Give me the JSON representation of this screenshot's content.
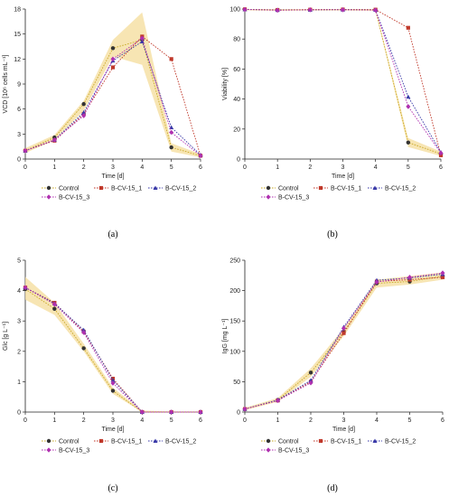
{
  "figure": {
    "panel_labels": [
      "(a)",
      "(b)",
      "(c)",
      "(d)"
    ],
    "legend_labels": [
      "Control",
      "B-CV-15_1",
      "B-CV-15_2",
      "B-CV-15_3"
    ]
  },
  "chart_data": [
    {
      "type": "line",
      "panel": "(a)",
      "xlabel": "Time [d]",
      "ylabel": "VCD [10⁶ cells mL⁻¹]",
      "xlim": [
        0,
        6
      ],
      "ylim": [
        0,
        18
      ],
      "xticks": [
        0,
        1,
        2,
        3,
        4,
        5,
        6
      ],
      "yticks": [
        0,
        3,
        6,
        9,
        12,
        15,
        18
      ],
      "x": [
        0,
        1,
        2,
        3,
        4,
        5,
        6
      ],
      "control_band": {
        "lower": [
          0.7,
          2.3,
          5.8,
          12.3,
          11.3,
          0.9,
          0.2
        ],
        "upper": [
          1.3,
          2.9,
          7.0,
          14.3,
          17.6,
          1.9,
          0.6
        ]
      },
      "series": [
        {
          "name": "Control",
          "color": "#333333",
          "marker": "circle",
          "values": [
            1.0,
            2.6,
            6.6,
            13.3,
            14.3,
            1.4,
            0.4
          ]
        },
        {
          "name": "B-CV-15_1",
          "color": "#c0392b",
          "marker": "square",
          "values": [
            1.0,
            2.2,
            5.4,
            11.0,
            14.7,
            12.0,
            0.4
          ]
        },
        {
          "name": "B-CV-15_2",
          "color": "#3a3aa8",
          "marker": "triangle",
          "values": [
            1.0,
            2.3,
            5.6,
            11.8,
            14.1,
            3.8,
            0.5
          ]
        },
        {
          "name": "B-CV-15_3",
          "color": "#b030b0",
          "marker": "diamond",
          "values": [
            1.0,
            2.3,
            5.2,
            12.0,
            14.5,
            3.2,
            0.4
          ]
        }
      ]
    },
    {
      "type": "line",
      "panel": "(b)",
      "xlabel": "Time [d]",
      "ylabel": "Viability [%]",
      "xlim": [
        0,
        6
      ],
      "ylim": [
        0,
        100
      ],
      "xticks": [
        0,
        1,
        2,
        3,
        4,
        5,
        6
      ],
      "yticks": [
        0,
        20,
        40,
        60,
        80,
        100
      ],
      "x": [
        0,
        1,
        2,
        3,
        4,
        5,
        6
      ],
      "control_band": {
        "lower": [
          99.2,
          98.8,
          99.0,
          99.0,
          98.8,
          8.0,
          2.0
        ],
        "upper": [
          100,
          100,
          100,
          100,
          100,
          14.0,
          5.0
        ]
      },
      "series": [
        {
          "name": "Control",
          "color": "#333333",
          "marker": "circle",
          "values": [
            99.7,
            99.3,
            99.5,
            99.6,
            99.4,
            11.0,
            3.5
          ]
        },
        {
          "name": "B-CV-15_1",
          "color": "#c0392b",
          "marker": "square",
          "values": [
            99.8,
            99.4,
            99.6,
            99.7,
            99.6,
            87.5,
            2.5
          ]
        },
        {
          "name": "B-CV-15_2",
          "color": "#3a3aa8",
          "marker": "triangle",
          "values": [
            99.8,
            99.3,
            99.5,
            99.6,
            99.4,
            41.5,
            4.5
          ]
        },
        {
          "name": "B-CV-15_3",
          "color": "#b030b0",
          "marker": "diamond",
          "values": [
            99.7,
            99.2,
            99.5,
            99.5,
            99.3,
            35.0,
            4.0
          ]
        }
      ]
    },
    {
      "type": "line",
      "panel": "(c)",
      "xlabel": "Time [d]",
      "ylabel": "Glc [g L⁻¹]",
      "xlim": [
        0,
        6
      ],
      "ylim": [
        0,
        5
      ],
      "xticks": [
        0,
        1,
        2,
        3,
        4,
        5,
        6
      ],
      "yticks": [
        0,
        1,
        2,
        3,
        4,
        5
      ],
      "x": [
        0,
        1,
        2,
        3,
        4,
        5,
        6
      ],
      "control_band": {
        "lower": [
          3.7,
          3.2,
          2.0,
          0.6,
          0.0,
          0.0,
          0.0
        ],
        "upper": [
          4.45,
          3.6,
          2.25,
          0.8,
          0.05,
          0.02,
          0.02
        ]
      },
      "series": [
        {
          "name": "Control",
          "color": "#333333",
          "marker": "circle",
          "values": [
            4.05,
            3.4,
            2.1,
            0.7,
            0.0,
            0.0,
            0.0
          ]
        },
        {
          "name": "B-CV-15_1",
          "color": "#c0392b",
          "marker": "square",
          "values": [
            4.1,
            3.6,
            2.65,
            1.1,
            0.0,
            0.0,
            0.0
          ]
        },
        {
          "name": "B-CV-15_2",
          "color": "#3a3aa8",
          "marker": "triangle",
          "values": [
            4.1,
            3.58,
            2.7,
            1.05,
            0.0,
            0.0,
            0.0
          ]
        },
        {
          "name": "B-CV-15_3",
          "color": "#b030b0",
          "marker": "diamond",
          "values": [
            4.1,
            3.55,
            2.62,
            0.95,
            0.0,
            0.0,
            0.0
          ]
        }
      ]
    },
    {
      "type": "line",
      "panel": "(d)",
      "xlabel": "Time [d]",
      "ylabel": "IgG [mg L⁻¹]",
      "xlim": [
        0,
        6
      ],
      "ylim": [
        0,
        250
      ],
      "xticks": [
        0,
        1,
        2,
        3,
        4,
        5,
        6
      ],
      "yticks": [
        0,
        50,
        100,
        150,
        200,
        250
      ],
      "x": [
        0,
        1,
        2,
        3,
        4,
        5,
        6
      ],
      "control_band": {
        "lower": [
          3,
          17,
          58,
          125,
          205,
          210,
          218
        ],
        "upper": [
          7,
          23,
          72,
          138,
          218,
          224,
          230
        ]
      },
      "series": [
        {
          "name": "Control",
          "color": "#333333",
          "marker": "circle",
          "values": [
            5,
            20,
            65,
            132,
            212,
            215,
            224
          ]
        },
        {
          "name": "B-CV-15_1",
          "color": "#c0392b",
          "marker": "square",
          "values": [
            5,
            19,
            50,
            130,
            215,
            218,
            222
          ]
        },
        {
          "name": "B-CV-15_2",
          "color": "#3a3aa8",
          "marker": "triangle",
          "values": [
            5,
            20,
            52,
            140,
            217,
            221,
            227
          ]
        },
        {
          "name": "B-CV-15_3",
          "color": "#b030b0",
          "marker": "diamond",
          "values": [
            5,
            19,
            48,
            138,
            214,
            222,
            229
          ]
        }
      ]
    }
  ]
}
